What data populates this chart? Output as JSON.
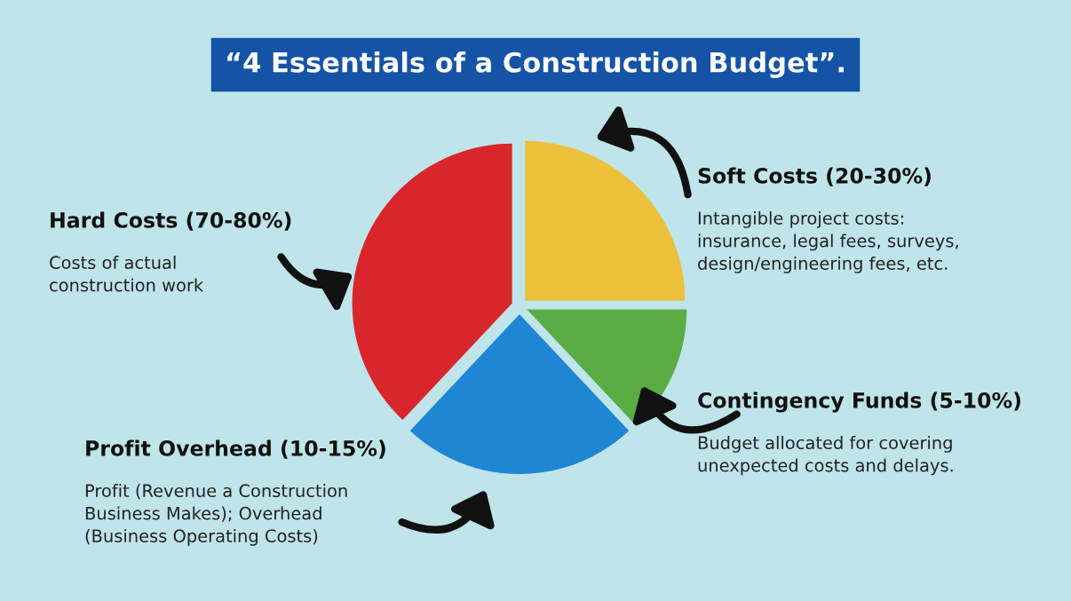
{
  "chart_data": {
    "type": "pie",
    "title": "“4 Essentials of a Construction Budget”.",
    "categories": [
      "Soft Costs (20-30%)",
      "Contingency Funds (5-10%)",
      "Profit Overhead (10-15%)",
      "Hard Costs (70-80%)"
    ],
    "values": [
      25,
      13,
      24,
      38
    ],
    "colors": [
      "#ecc03a",
      "#5aad45",
      "#1e86d4",
      "#d8262a"
    ],
    "annotations": [
      "Intangible project costs:\ninsurance, legal fees, surveys,\ndesign/engineering fees, etc.",
      "Budget allocated for covering\nunexpected costs and delays.",
      "Profit (Revenue a Construction\nBusiness Makes); Overhead\n(Business Operating Costs)",
      "Costs of actual\nconstruction work"
    ]
  }
}
